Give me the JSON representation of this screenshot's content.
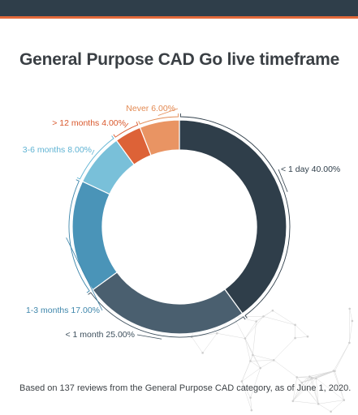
{
  "header": {
    "bar_color": "#2f3e4a",
    "accent_color": "#e3693a"
  },
  "chart_data": {
    "type": "pie",
    "variant": "donut",
    "title": "General Purpose CAD Go live timeframe",
    "categories": [
      "< 1 day",
      "< 1 month",
      "1-3 months",
      "3-6 months",
      "> 12 months",
      "Never"
    ],
    "values": [
      40,
      25,
      17,
      8,
      4,
      6
    ],
    "value_labels": [
      "40.00%",
      "25.00%",
      "17.00%",
      "8.00%",
      "4.00%",
      "6.00%"
    ],
    "colors": [
      "#2f3e4a",
      "#4a5f6f",
      "#4a94b8",
      "#79c0d9",
      "#dd6237",
      "#e99463"
    ],
    "label_colors": [
      "#2f3e4a",
      "#3d4f5c",
      "#3e86ab",
      "#5fb3d3",
      "#d9582c",
      "#e38a53"
    ],
    "legend": "none"
  },
  "footnote": "Based on 137 reviews from the General Purpose CAD category, as of June 1, 2020."
}
